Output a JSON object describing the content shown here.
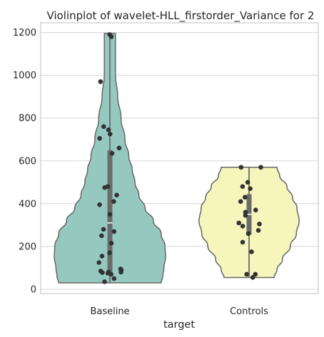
{
  "chart_data": {
    "type": "violin",
    "title": "Violinplot of wavelet-HLL_firstorder_Variance for 2",
    "xlabel": "target",
    "ylabel": "",
    "categories": [
      "Baseline",
      "Controls"
    ],
    "yticks": [
      0,
      200,
      400,
      600,
      800,
      1000,
      1200
    ],
    "ylim": [
      -20,
      1245
    ],
    "grid": "horizontal",
    "colors": {
      "Baseline": "#95c9c0",
      "Controls": "#f5f5bc",
      "outline": "#666666",
      "box": "#6b6b6b",
      "points": "#333333"
    },
    "violins": [
      {
        "category": "Baseline",
        "range": [
          30,
          1195
        ],
        "box": {
          "q1": 75,
          "median": 310,
          "q3": 650
        },
        "density": [
          [
            30,
            0.92
          ],
          [
            60,
            0.95
          ],
          [
            100,
            0.97
          ],
          [
            150,
            1.0
          ],
          [
            200,
            0.99
          ],
          [
            260,
            0.92
          ],
          [
            320,
            0.78
          ],
          [
            380,
            0.63
          ],
          [
            440,
            0.52
          ],
          [
            500,
            0.45
          ],
          [
            560,
            0.4
          ],
          [
            620,
            0.34
          ],
          [
            700,
            0.27
          ],
          [
            800,
            0.2
          ],
          [
            900,
            0.14
          ],
          [
            1000,
            0.1
          ],
          [
            1100,
            0.1
          ],
          [
            1195,
            0.1
          ]
        ],
        "points": [
          1190,
          1180,
          970,
          760,
          745,
          725,
          705,
          660,
          635,
          480,
          475,
          440,
          410,
          395,
          350,
          280,
          270,
          250,
          215,
          170,
          155,
          125,
          95,
          90,
          85,
          80,
          80,
          78,
          75,
          70,
          50,
          35
        ]
      },
      {
        "category": "Controls",
        "range": [
          55,
          570
        ],
        "box": {
          "q1": 255,
          "median": 350,
          "q3": 445
        },
        "density": [
          [
            55,
            0.45
          ],
          [
            90,
            0.5
          ],
          [
            140,
            0.6
          ],
          [
            200,
            0.74
          ],
          [
            260,
            0.85
          ],
          [
            320,
            0.9
          ],
          [
            380,
            0.86
          ],
          [
            430,
            0.78
          ],
          [
            480,
            0.68
          ],
          [
            530,
            0.55
          ],
          [
            570,
            0.5
          ]
        ],
        "points": [
          570,
          570,
          500,
          480,
          470,
          430,
          410,
          370,
          360,
          345,
          310,
          305,
          295,
          275,
          260,
          220,
          175,
          70,
          70,
          55
        ]
      }
    ]
  }
}
